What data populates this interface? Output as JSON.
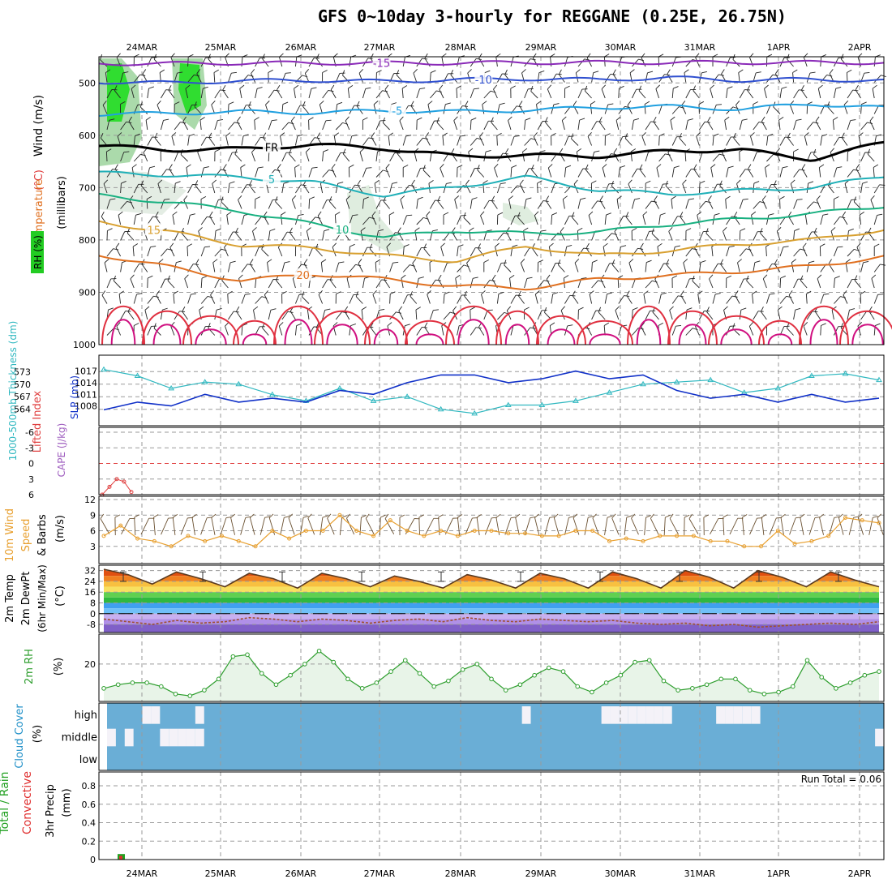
{
  "title": "GFS 0~10day 3-hourly for REGGANE (0.25E, 26.75N)",
  "dates": [
    "24MAR",
    "25MAR",
    "26MAR",
    "27MAR",
    "28MAR",
    "29MAR",
    "30MAR",
    "31MAR",
    "1APR",
    "2APR"
  ],
  "colors": {
    "axis": "#000000",
    "grid": "#9a9a9a",
    "temp": "#e07020",
    "dew": "#a05030",
    "rh2m": "#2e9e2e",
    "cloud": "#6aaed6",
    "cloudGap": "#f4f2f8",
    "slp": "#1030c8",
    "thick": "#30b8c0",
    "wind10": "#e8a030",
    "li": "#e04040",
    "precipTotal": "#20a020",
    "precipConv": "#e03030"
  },
  "chart_data": [
    {
      "type": "contour",
      "name": "upper-air",
      "ylabel_parts": [
        "RH (%)",
        "Temperature",
        "(°C)",
        "Wind",
        "(m/s)"
      ],
      "ylabel_units": "(millibars)",
      "yticks": [
        500,
        600,
        700,
        800,
        900,
        1000
      ],
      "ylim": [
        450,
        1000
      ],
      "temperature_contours": [
        {
          "value": -15,
          "label": "-15",
          "color": "#8a2ab8",
          "levels": [
            463,
            463,
            462,
            462,
            462,
            462,
            461,
            461,
            461,
            461,
            461,
            461
          ]
        },
        {
          "value": -10,
          "label": "-10",
          "color": "#3050d0",
          "levels": [
            498,
            500,
            496,
            495,
            497,
            494,
            492,
            494,
            490,
            495,
            493,
            496
          ]
        },
        {
          "value": -5,
          "label": "-5",
          "color": "#20a0e0",
          "levels": [
            560,
            558,
            555,
            557,
            553,
            555,
            552,
            547,
            545,
            550,
            540,
            548
          ]
        },
        {
          "value": 0,
          "label": "FR",
          "color": "#000000",
          "levels": [
            620,
            628,
            626,
            618,
            625,
            640,
            638,
            640,
            630,
            628,
            646,
            614
          ]
        },
        {
          "value": 5,
          "label": "5",
          "color": "#20b0b8",
          "levels": [
            672,
            676,
            680,
            690,
            715,
            698,
            680,
            705,
            712,
            706,
            700,
            678
          ]
        },
        {
          "value": 10,
          "label": "10",
          "color": "#18b080",
          "levels": [
            715,
            728,
            745,
            770,
            795,
            782,
            788,
            785,
            770,
            760,
            750,
            735
          ]
        },
        {
          "value": 15,
          "label": "15",
          "color": "#d8a030",
          "levels": [
            765,
            785,
            810,
            815,
            830,
            840,
            812,
            830,
            820,
            808,
            800,
            780
          ]
        },
        {
          "value": 20,
          "label": "20",
          "color": "#e07020",
          "levels": [
            828,
            852,
            878,
            865,
            875,
            888,
            892,
            875,
            868,
            860,
            850,
            832
          ]
        }
      ]
    },
    {
      "type": "line",
      "name": "thickness-slp",
      "ylabel_left": "1000-500mb Thickness (dm)",
      "ylabel_right": "SLP (mb)",
      "yticks_left": [
        564,
        567,
        570,
        573
      ],
      "yticks_right": [
        1008,
        1011,
        1014,
        1017
      ],
      "series": [
        {
          "name": "1000-500mb Thickness (dm)",
          "axis": "left",
          "values": [
            573.5,
            572,
            569,
            570.5,
            570,
            567.5,
            566,
            569,
            566,
            567,
            564,
            563,
            565,
            565,
            566,
            568,
            570,
            570.5,
            571,
            568,
            569,
            572,
            572.5,
            571
          ]
        },
        {
          "name": "SLP (mb)",
          "axis": "right",
          "values": [
            1007,
            1009,
            1008,
            1011,
            1009,
            1010,
            1009,
            1012,
            1011,
            1014,
            1016,
            1016,
            1014,
            1015,
            1017,
            1015,
            1016,
            1012,
            1010,
            1011,
            1009,
            1011,
            1009,
            1010
          ]
        }
      ]
    },
    {
      "type": "line",
      "name": "lifted-index",
      "ylabel": "Lifted Index",
      "ylabel2": "CAPE (J/kg)",
      "yticks": [
        -6,
        -3,
        0,
        3,
        6
      ],
      "ylim": [
        -6,
        6
      ],
      "series": [
        {
          "name": "Lifted Index",
          "values": [
            6,
            4.5,
            3,
            3.5,
            5.5
          ]
        }
      ]
    },
    {
      "type": "line",
      "name": "wind10m",
      "ylabel": "10m Wind Speed & Barbs",
      "yunits": "(m/s)",
      "yticks": [
        3,
        6,
        9,
        12
      ],
      "ylim": [
        0,
        12
      ],
      "series": [
        {
          "name": "10m Wind Speed",
          "values": [
            5,
            7,
            4.5,
            4,
            3,
            5,
            4,
            5,
            4,
            3,
            6,
            4.5,
            6,
            6,
            9,
            6,
            5,
            8,
            6,
            5,
            6,
            5,
            6,
            6,
            5.5,
            5.5,
            5,
            5,
            6,
            6,
            4,
            4.5,
            4,
            5,
            5,
            5,
            4,
            4,
            3,
            3,
            6,
            3.5,
            4,
            5,
            8.5,
            8,
            7.5
          ]
        }
      ]
    },
    {
      "type": "area",
      "name": "temp2m",
      "ylabel": "2m Temp 2m DewPt (6hr Min/Max)",
      "yunits": "(°C)",
      "yticks": [
        32,
        24,
        16,
        8,
        0,
        -8
      ],
      "ylim": [
        -14,
        36
      ],
      "series": [
        {
          "name": "2m Temp",
          "values": [
            33,
            29,
            22,
            31,
            26,
            20,
            30,
            26,
            19,
            30,
            26,
            20,
            28,
            24,
            19,
            29,
            25,
            19,
            30,
            26,
            19,
            31,
            26,
            19,
            32,
            27,
            19,
            32,
            27,
            20,
            31,
            25,
            20
          ]
        },
        {
          "name": "2m DewPt",
          "values": [
            -4,
            -6,
            -8,
            -5,
            -7,
            -6,
            -3,
            -4,
            -6,
            -4,
            -5,
            -7,
            -5,
            -4,
            -6,
            -3,
            -5,
            -6,
            -4,
            -5,
            -6,
            -5,
            -7,
            -8,
            -7,
            -9,
            -8,
            -10,
            -9,
            -8,
            -7,
            -8,
            -6
          ]
        }
      ]
    },
    {
      "type": "area",
      "name": "rh2m",
      "ylabel": "2m RH",
      "yunits": "(%)",
      "yticks": [
        20
      ],
      "ylim": [
        0,
        36
      ],
      "series": [
        {
          "name": "2m RH",
          "values": [
            7,
            9,
            10,
            10,
            8,
            4,
            3,
            6,
            12,
            24,
            25,
            15,
            9,
            14,
            20,
            27,
            21,
            12,
            7,
            10,
            16,
            22,
            15,
            8,
            11,
            17,
            20,
            12,
            6,
            9,
            14,
            18,
            16,
            8,
            5,
            10,
            14,
            21,
            22,
            11,
            6,
            7,
            9,
            12,
            12,
            6,
            4,
            5,
            8,
            22,
            13,
            7,
            10,
            14,
            16
          ]
        }
      ]
    },
    {
      "type": "heatmap",
      "name": "cloud-cover",
      "ylabel": "Cloud Cover",
      "yunits": "(%)",
      "levels": [
        "high",
        "middle",
        "low"
      ],
      "high": [
        0,
        0,
        0,
        0,
        1,
        1,
        0,
        0,
        0,
        0,
        1,
        0,
        0,
        0,
        0,
        0,
        0,
        0,
        0,
        0,
        0,
        0,
        0,
        0,
        0,
        0,
        0,
        0,
        0,
        0,
        0,
        0,
        0,
        0,
        0,
        0,
        0,
        0,
        0,
        0,
        0,
        0,
        0,
        0,
        0,
        0,
        0,
        1,
        0,
        0,
        0,
        0,
        0,
        0,
        0,
        0,
        1,
        1,
        1,
        1,
        1,
        1,
        1,
        1,
        0,
        0,
        0,
        0,
        0,
        1,
        1,
        1,
        1,
        1,
        0,
        0,
        0,
        0,
        0,
        0,
        0,
        0,
        0,
        0,
        0,
        0,
        0,
        0
      ],
      "middle": [
        1,
        0,
        1,
        0,
        0,
        0,
        1,
        1,
        1,
        1,
        1,
        0,
        0,
        0,
        0,
        0,
        0,
        0,
        0,
        0,
        0,
        0,
        0,
        0,
        0,
        0,
        0,
        0,
        0,
        0,
        0,
        0,
        0,
        0,
        0,
        0,
        0,
        0,
        0,
        0,
        0,
        0,
        0,
        0,
        0,
        0,
        0,
        0,
        0,
        0,
        0,
        0,
        0,
        0,
        0,
        0,
        0,
        0,
        0,
        0,
        0,
        0,
        0,
        0,
        0,
        0,
        0,
        0,
        0,
        0,
        0,
        0,
        0,
        0,
        0,
        0,
        0,
        0,
        0,
        0,
        0,
        0,
        0,
        0,
        0,
        0,
        0,
        1
      ],
      "low": [
        0,
        0,
        0,
        0,
        0,
        0,
        0,
        0,
        0,
        0,
        0,
        0,
        0,
        0,
        0,
        0,
        0,
        0,
        0,
        0,
        0,
        0,
        0,
        0,
        0,
        0,
        0,
        0,
        0,
        0,
        0,
        0,
        0,
        0,
        0,
        0,
        0,
        0,
        0,
        0,
        0,
        0,
        0,
        0,
        0,
        0,
        0,
        0,
        0,
        0,
        0,
        0,
        0,
        0,
        0,
        0,
        0,
        0,
        0,
        0,
        0,
        0,
        0,
        0,
        0,
        0,
        0,
        0,
        0,
        0,
        0,
        0,
        0,
        0,
        0,
        0,
        0,
        0,
        0,
        0,
        0,
        0,
        0,
        0,
        0,
        0,
        0,
        0
      ]
    },
    {
      "type": "bar",
      "name": "precip",
      "ylabel": "3hr Precip",
      "yunits": "(mm)",
      "legend": [
        "Total / Rain",
        "Convective"
      ],
      "annotation": "Run Total = 0.06",
      "yticks": [
        0,
        0.2,
        0.4,
        0.6,
        0.8
      ],
      "ylim": [
        0,
        0.95
      ],
      "series": [
        {
          "name": "Total / Rain",
          "values": [
            0.06
          ]
        },
        {
          "name": "Convective",
          "values": [
            0.04
          ]
        }
      ]
    }
  ]
}
